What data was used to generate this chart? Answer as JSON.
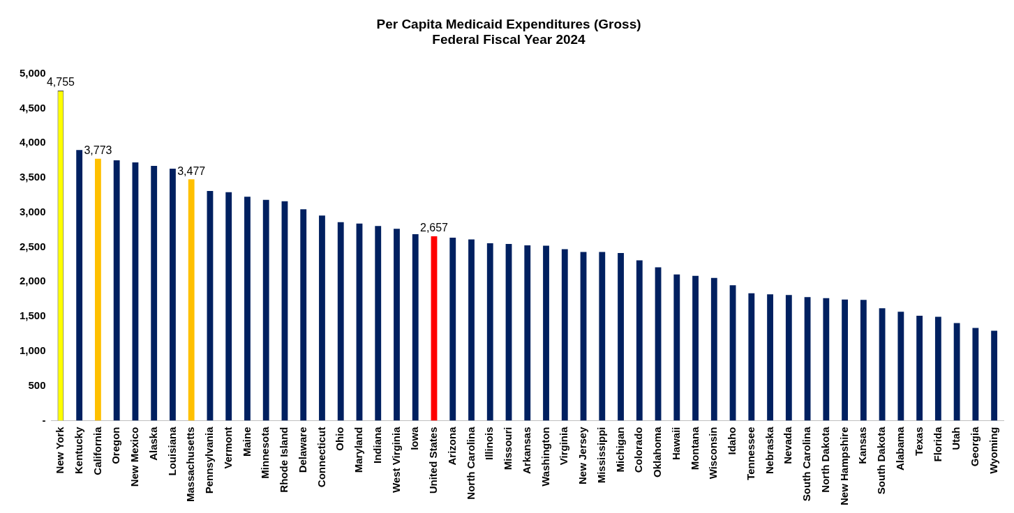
{
  "chart_data": {
    "type": "bar",
    "title": [
      "Per Capita Medicaid Expenditures (Gross)",
      "Federal Fiscal Year 2024"
    ],
    "categories": [
      "New York",
      "Kentucky",
      "California",
      "Oregon",
      "New Mexico",
      "Alaska",
      "Louisiana",
      "Massachusetts",
      "Pennsylvania",
      "Vermont",
      "Maine",
      "Minnesota",
      "Rhode Island",
      "Delaware",
      "Connecticut",
      "Ohio",
      "Maryland",
      "Indiana",
      "West Virginia",
      "Iowa",
      "United States",
      "Arizona",
      "North Carolina",
      "Illinois",
      "Missouri",
      "Arkansas",
      "Washington",
      "Virginia",
      "New Jersey",
      "Mississippi",
      "Michigan",
      "Colorado",
      "Oklahoma",
      "Hawaii",
      "Montana",
      "Wisconsin",
      "Idaho",
      "Tennessee",
      "Nebraska",
      "Nevada",
      "South Carolina",
      "North Dakota",
      "New Hampshire",
      "Kansas",
      "South Dakota",
      "Alabama",
      "Texas",
      "Florida",
      "Utah",
      "Georgia",
      "Wyoming"
    ],
    "values": [
      4755,
      3900,
      3773,
      3750,
      3720,
      3670,
      3630,
      3477,
      3310,
      3290,
      3225,
      3180,
      3160,
      3045,
      2955,
      2860,
      2840,
      2805,
      2765,
      2685,
      2657,
      2635,
      2610,
      2555,
      2545,
      2525,
      2520,
      2470,
      2430,
      2430,
      2415,
      2310,
      2210,
      2105,
      2085,
      2055,
      1950,
      1835,
      1820,
      1810,
      1780,
      1765,
      1745,
      1740,
      1620,
      1570,
      1510,
      1495,
      1405,
      1335,
      1295
    ],
    "colors": [
      "#ffff00",
      "#002060",
      "#ffc000",
      "#002060",
      "#002060",
      "#002060",
      "#002060",
      "#ffc000",
      "#002060",
      "#002060",
      "#002060",
      "#002060",
      "#002060",
      "#002060",
      "#002060",
      "#002060",
      "#002060",
      "#002060",
      "#002060",
      "#002060",
      "#ff0000",
      "#002060",
      "#002060",
      "#002060",
      "#002060",
      "#002060",
      "#002060",
      "#002060",
      "#002060",
      "#002060",
      "#002060",
      "#002060",
      "#002060",
      "#002060",
      "#002060",
      "#002060",
      "#002060",
      "#002060",
      "#002060",
      "#002060",
      "#002060",
      "#002060",
      "#002060",
      "#002060",
      "#002060",
      "#002060",
      "#002060",
      "#002060",
      "#002060",
      "#002060",
      "#002060"
    ],
    "value_labels": [
      "4,755",
      null,
      "3,773",
      null,
      null,
      null,
      null,
      "3,477",
      null,
      null,
      null,
      null,
      null,
      null,
      null,
      null,
      null,
      null,
      null,
      null,
      "2,657",
      null,
      null,
      null,
      null,
      null,
      null,
      null,
      null,
      null,
      null,
      null,
      null,
      null,
      null,
      null,
      null,
      null,
      null,
      null,
      null,
      null,
      null,
      null,
      null,
      null,
      null,
      null,
      null,
      null,
      null
    ],
    "ylim": [
      0,
      5000
    ],
    "yticks": [
      {
        "value": 0,
        "label": "-"
      },
      {
        "value": 500,
        "label": "500"
      },
      {
        "value": 1000,
        "label": "1,000"
      },
      {
        "value": 1500,
        "label": "1,500"
      },
      {
        "value": 2000,
        "label": "2,000"
      },
      {
        "value": 2500,
        "label": "2,500"
      },
      {
        "value": 3000,
        "label": "3,000"
      },
      {
        "value": 3500,
        "label": "3,500"
      },
      {
        "value": 4000,
        "label": "4,000"
      },
      {
        "value": 4500,
        "label": "4,500"
      },
      {
        "value": 5000,
        "label": "5,000"
      }
    ],
    "grid": false,
    "legend": false
  }
}
